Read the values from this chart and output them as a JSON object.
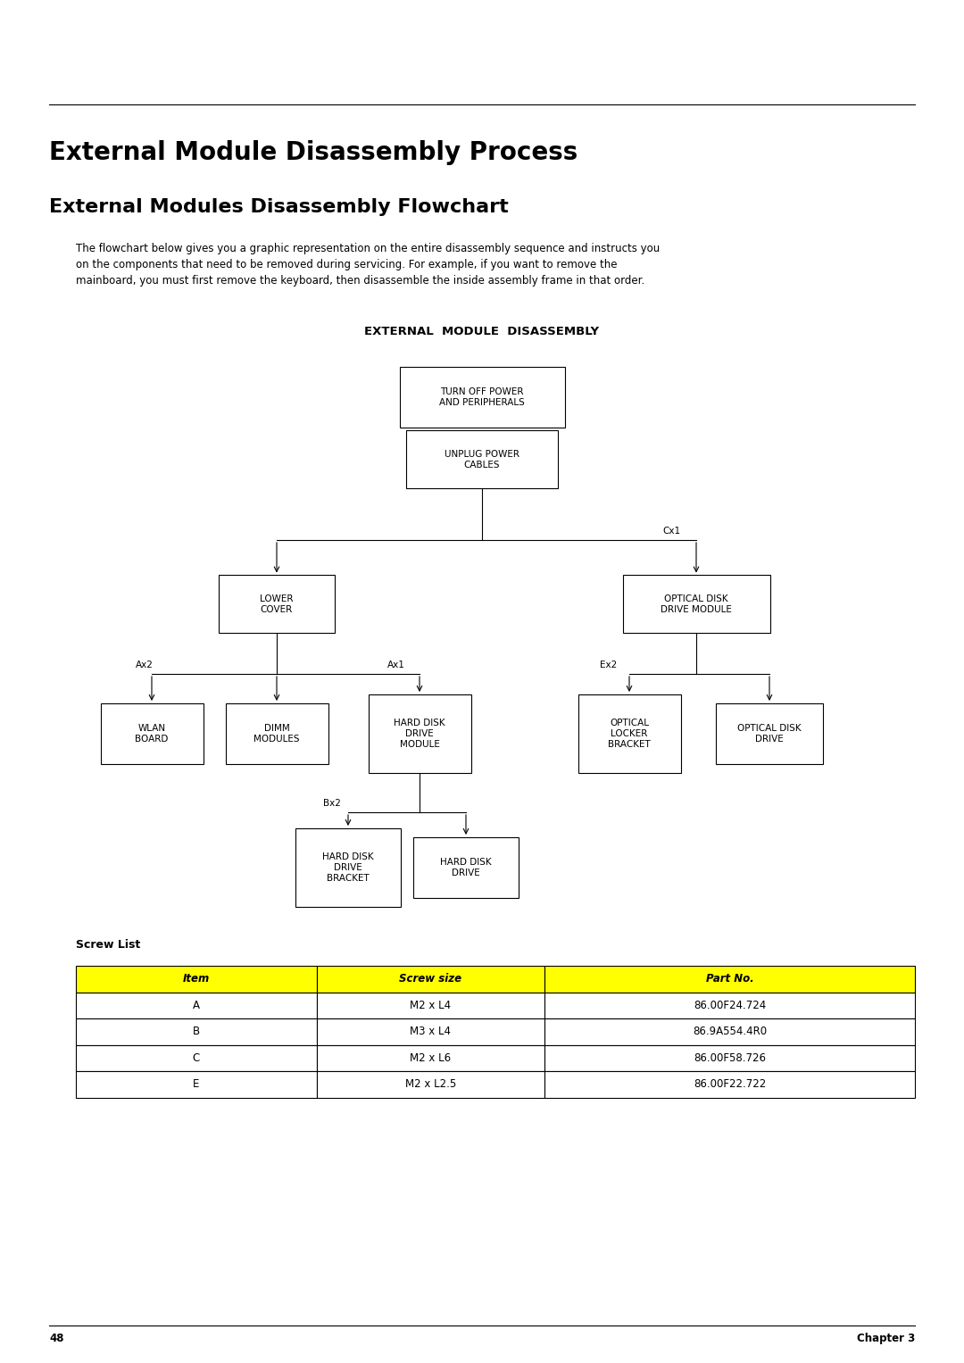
{
  "title1": "External Module Disassembly Process",
  "title2": "External Modules Disassembly Flowchart",
  "body_text": "The flowchart below gives you a graphic representation on the entire disassembly sequence and instructs you\non the components that need to be removed during servicing. For example, if you want to remove the\nmainboard, you must first remove the keyboard, then disassemble the inside assembly frame in that order.",
  "flowchart_title": "EXTERNAL  MODULE  DISASSEMBLY",
  "screw_list_title": "Screw List",
  "table_headers": [
    "Item",
    "Screw size",
    "Part No."
  ],
  "table_rows": [
    [
      "A",
      "M2 x L4",
      "86.00F24.724"
    ],
    [
      "B",
      "M3 x L4",
      "86.9A554.4R0"
    ],
    [
      "C",
      "M2 x L6",
      "86.00F58.726"
    ],
    [
      "E",
      "M2 x L2.5",
      "86.00F22.722"
    ]
  ],
  "header_bg": "#FFFF00",
  "header_text_color": "#000000",
  "page_number": "48",
  "chapter": "Chapter 3",
  "bg_color": "#FFFFFF"
}
